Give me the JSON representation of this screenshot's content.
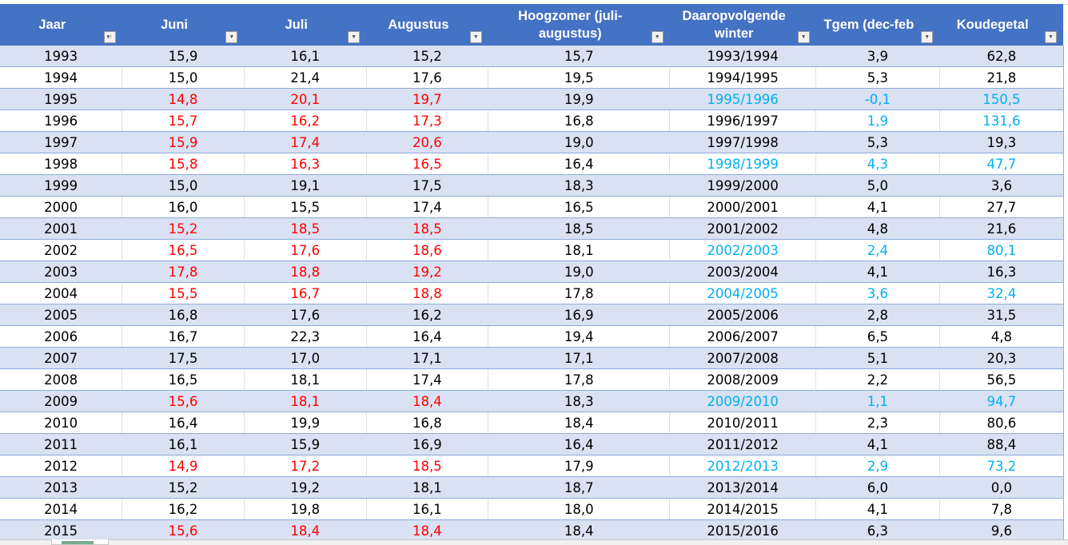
{
  "colors": {
    "header_bg": "#4472c4",
    "band": "#d9e1f2",
    "red": "#ff0000",
    "blue": "#00b0f0"
  },
  "headers": [
    {
      "label": "Jaar",
      "filter_icon": "sort-ascending-filter-icon"
    },
    {
      "label": "Juni",
      "filter_icon": "dropdown-filter-icon"
    },
    {
      "label": "Juli",
      "filter_icon": "dropdown-filter-icon"
    },
    {
      "label": "Augustus",
      "filter_icon": "dropdown-filter-icon"
    },
    {
      "label": "Hoogzomer (juli-augustus)",
      "filter_icon": "dropdown-filter-icon"
    },
    {
      "label": "Daaropvolgende winter",
      "filter_icon": "dropdown-filter-icon"
    },
    {
      "label": "Tgem (dec-feb",
      "filter_icon": "dropdown-filter-icon"
    },
    {
      "label": "Koudegetal",
      "filter_icon": "dropdown-filter-icon"
    }
  ],
  "rows": [
    {
      "cells": [
        "1993",
        "15,9",
        "16,1",
        "15,2",
        "15,7",
        "1993/1994",
        "3,9",
        "62,8"
      ],
      "red_summer": false,
      "blue_winter": []
    },
    {
      "cells": [
        "1994",
        "15,0",
        "21,4",
        "17,6",
        "19,5",
        "1994/1995",
        "5,3",
        "21,8"
      ],
      "red_summer": false,
      "blue_winter": []
    },
    {
      "cells": [
        "1995",
        "14,8",
        "20,1",
        "19,7",
        "19,9",
        "1995/1996",
        "-0,1",
        "150,5"
      ],
      "red_summer": true,
      "blue_winter": [
        5,
        6,
        7
      ]
    },
    {
      "cells": [
        "1996",
        "15,7",
        "16,2",
        "17,3",
        "16,8",
        "1996/1997",
        "1,9",
        "131,6"
      ],
      "red_summer": true,
      "blue_winter": [
        6,
        7
      ]
    },
    {
      "cells": [
        "1997",
        "15,9",
        "17,4",
        "20,6",
        "19,0",
        "1997/1998",
        "5,3",
        "19,3"
      ],
      "red_summer": true,
      "blue_winter": []
    },
    {
      "cells": [
        "1998",
        "15,8",
        "16,3",
        "16,5",
        "16,4",
        "1998/1999",
        "4,3",
        "47,7"
      ],
      "red_summer": true,
      "blue_winter": [
        5,
        6,
        7
      ]
    },
    {
      "cells": [
        "1999",
        "15,0",
        "19,1",
        "17,5",
        "18,3",
        "1999/2000",
        "5,0",
        "3,6"
      ],
      "red_summer": false,
      "blue_winter": []
    },
    {
      "cells": [
        "2000",
        "16,0",
        "15,5",
        "17,4",
        "16,5",
        "2000/2001",
        "4,1",
        "27,7"
      ],
      "red_summer": false,
      "blue_winter": []
    },
    {
      "cells": [
        "2001",
        "15,2",
        "18,5",
        "18,5",
        "18,5",
        "2001/2002",
        "4,8",
        "21,6"
      ],
      "red_summer": true,
      "blue_winter": []
    },
    {
      "cells": [
        "2002",
        "16,5",
        "17,6",
        "18,6",
        "18,1",
        "2002/2003",
        "2,4",
        "80,1"
      ],
      "red_summer": true,
      "blue_winter": [
        5,
        6,
        7
      ]
    },
    {
      "cells": [
        "2003",
        "17,8",
        "18,8",
        "19,2",
        "19,0",
        "2003/2004",
        "4,1",
        "16,3"
      ],
      "red_summer": true,
      "blue_winter": []
    },
    {
      "cells": [
        "2004",
        "15,5",
        "16,7",
        "18,8",
        "17,8",
        "2004/2005",
        "3,6",
        "32,4"
      ],
      "red_summer": true,
      "blue_winter": [
        5,
        6,
        7
      ]
    },
    {
      "cells": [
        "2005",
        "16,8",
        "17,6",
        "16,2",
        "16,9",
        "2005/2006",
        "2,8",
        "31,5"
      ],
      "red_summer": false,
      "blue_winter": []
    },
    {
      "cells": [
        "2006",
        "16,7",
        "22,3",
        "16,4",
        "19,4",
        "2006/2007",
        "6,5",
        "4,8"
      ],
      "red_summer": false,
      "blue_winter": []
    },
    {
      "cells": [
        "2007",
        "17,5",
        "17,0",
        "17,1",
        "17,1",
        "2007/2008",
        "5,1",
        "20,3"
      ],
      "red_summer": false,
      "blue_winter": []
    },
    {
      "cells": [
        "2008",
        "16,5",
        "18,1",
        "17,4",
        "17,8",
        "2008/2009",
        "2,2",
        "56,5"
      ],
      "red_summer": false,
      "blue_winter": []
    },
    {
      "cells": [
        "2009",
        "15,6",
        "18,1",
        "18,4",
        "18,3",
        "2009/2010",
        "1,1",
        "94,7"
      ],
      "red_summer": true,
      "blue_winter": [
        5,
        6,
        7
      ]
    },
    {
      "cells": [
        "2010",
        "16,4",
        "19,9",
        "16,8",
        "18,4",
        "2010/2011",
        "2,3",
        "80,6"
      ],
      "red_summer": false,
      "blue_winter": []
    },
    {
      "cells": [
        "2011",
        "16,1",
        "15,9",
        "16,9",
        "16,4",
        "2011/2012",
        "4,1",
        "88,4"
      ],
      "red_summer": false,
      "blue_winter": []
    },
    {
      "cells": [
        "2012",
        "14,9",
        "17,2",
        "18,5",
        "17,9",
        "2012/2013",
        "2,9",
        "73,2"
      ],
      "red_summer": true,
      "blue_winter": [
        5,
        6,
        7
      ]
    },
    {
      "cells": [
        "2013",
        "15,2",
        "19,2",
        "18,1",
        "18,7",
        "2013/2014",
        "6,0",
        "0,0"
      ],
      "red_summer": false,
      "blue_winter": []
    },
    {
      "cells": [
        "2014",
        "16,2",
        "19,8",
        "16,1",
        "18,0",
        "2014/2015",
        "4,1",
        "7,8"
      ],
      "red_summer": false,
      "blue_winter": []
    },
    {
      "cells": [
        "2015",
        "15,6",
        "18,4",
        "18,4",
        "18,4",
        "2015/2016",
        "6,3",
        "9,6"
      ],
      "red_summer": true,
      "blue_winter": []
    }
  ]
}
